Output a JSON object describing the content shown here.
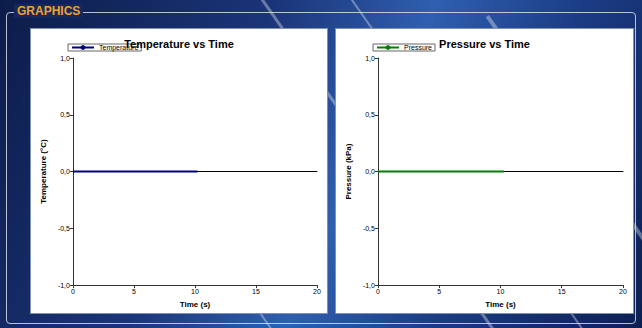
{
  "header": {
    "title": "GRAPHICS"
  },
  "chart_data": [
    {
      "type": "line",
      "title": "Temperature vs Time",
      "x_label": "Time (s)",
      "y_label": "Temperature (°C)",
      "legend": "upper left",
      "grid": false,
      "xlim": [
        0,
        20
      ],
      "xticks": [
        0,
        5,
        10,
        15,
        20
      ],
      "ylim": [
        -1,
        1
      ],
      "yticks": [
        {
          "value": -1,
          "label": "-1,0"
        },
        {
          "value": -0.5,
          "label": "-0,5"
        },
        {
          "value": 0,
          "label": "0,0"
        },
        {
          "value": 0.5,
          "label": "0,5"
        },
        {
          "value": 1,
          "label": "1,0"
        }
      ],
      "x": [
        0,
        10.2
      ],
      "series": [
        {
          "name": "Temperature",
          "color": "#00007f",
          "values": [
            0,
            0
          ]
        }
      ]
    },
    {
      "type": "line",
      "title": "Pressure vs Time",
      "x_label": "Time (s)",
      "y_label": "Pressure (kPa)",
      "legend": "upper left",
      "grid": false,
      "xlim": [
        0,
        20
      ],
      "xticks": [
        0,
        5,
        10,
        15,
        20
      ],
      "ylim": [
        -1,
        1
      ],
      "yticks": [
        {
          "value": -1,
          "label": "-1,0"
        },
        {
          "value": -0.5,
          "label": "-0,5"
        },
        {
          "value": 0,
          "label": "0,0"
        },
        {
          "value": 0.5,
          "label": "0,5"
        },
        {
          "value": 1,
          "label": "1,0"
        }
      ],
      "x": [
        0,
        10.3
      ],
      "series": [
        {
          "name": "Pressure",
          "color": "#007f00",
          "values": [
            0,
            0
          ]
        }
      ]
    }
  ]
}
